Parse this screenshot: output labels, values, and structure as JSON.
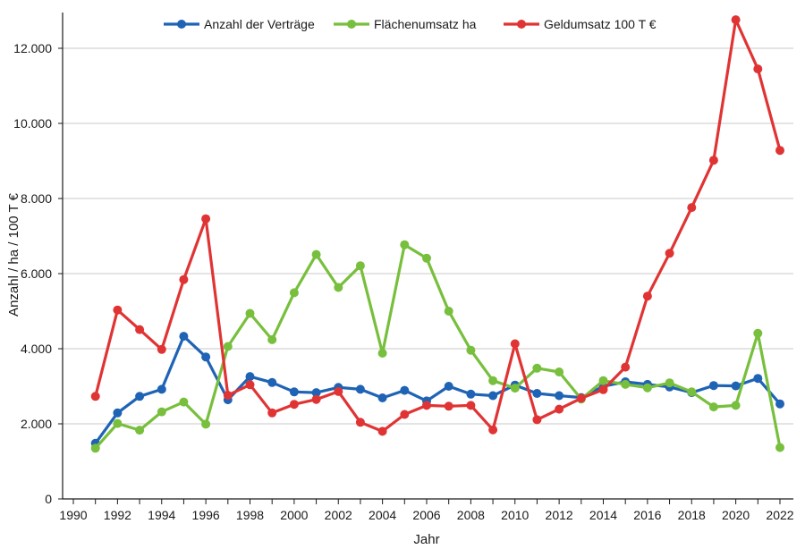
{
  "chart_data": {
    "type": "line",
    "title": "",
    "xlabel": "Jahr",
    "ylabel": "Anzahl / ha / 100 T €",
    "xlim": [
      1990,
      2022
    ],
    "ylim": [
      0,
      12000
    ],
    "x_ticks": [
      1990,
      1992,
      1994,
      1996,
      1998,
      2000,
      2002,
      2004,
      2006,
      2008,
      2010,
      2012,
      2014,
      2016,
      2018,
      2020,
      2022
    ],
    "x_tick_labels": [
      "1990",
      "1992",
      "1994",
      "1996",
      "1998",
      "2000",
      "2002",
      "2004",
      "2006",
      "2008",
      "2010",
      "2012",
      "2014",
      "2016",
      "2018",
      "2020",
      "2022"
    ],
    "y_ticks": [
      0,
      2000,
      4000,
      6000,
      8000,
      10000,
      12000
    ],
    "y_tick_labels": [
      "0",
      "2.000",
      "4.000",
      "6.000",
      "8.000",
      "10.000",
      "12.000"
    ],
    "grid": "horizontal",
    "legend_position": "top-center",
    "x": [
      1991,
      1992,
      1993,
      1994,
      1995,
      1996,
      1997,
      1998,
      1999,
      2000,
      2001,
      2002,
      2003,
      2004,
      2005,
      2006,
      2007,
      2008,
      2009,
      2010,
      2011,
      2012,
      2013,
      2014,
      2015,
      2016,
      2017,
      2018,
      2019,
      2020,
      2021,
      2022
    ],
    "series": [
      {
        "name": "Anzahl der Verträge",
        "color": "#1f63b5",
        "values": [
          1480,
          2290,
          2730,
          2920,
          4330,
          3780,
          2640,
          3260,
          3100,
          2850,
          2830,
          2970,
          2920,
          2690,
          2890,
          2610,
          3000,
          2790,
          2750,
          3030,
          2810,
          2750,
          2700,
          3000,
          3120,
          3050,
          2980,
          2830,
          3020,
          3010,
          3210,
          2530
        ]
      },
      {
        "name": "Flächenumsatz ha",
        "color": "#77bf3c",
        "values": [
          1350,
          2010,
          1830,
          2320,
          2580,
          1990,
          4060,
          4940,
          4240,
          5490,
          6510,
          5630,
          6210,
          3880,
          6770,
          6410,
          5000,
          3960,
          3150,
          2950,
          3480,
          3380,
          2660,
          3150,
          3050,
          2960,
          3090,
          2850,
          2450,
          2490,
          4410,
          1370
        ]
      },
      {
        "name": "Geldumsatz 100 T €",
        "color": "#e03434",
        "values": [
          2730,
          5030,
          4510,
          3980,
          5840,
          7460,
          2760,
          3040,
          2290,
          2520,
          2650,
          2860,
          2040,
          1800,
          2250,
          2490,
          2470,
          2490,
          1840,
          4130,
          2110,
          2390,
          2680,
          2910,
          3510,
          5400,
          6540,
          7760,
          9020,
          12760,
          11450,
          9280
        ]
      }
    ]
  }
}
